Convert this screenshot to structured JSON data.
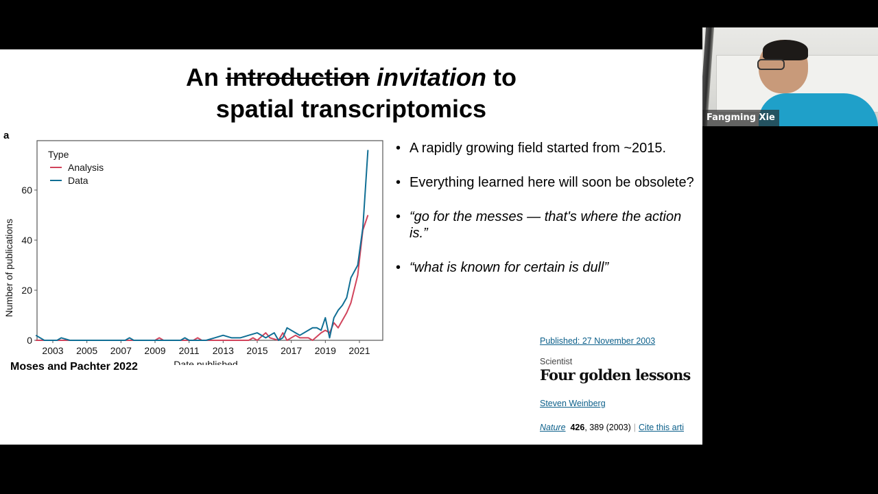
{
  "slide": {
    "title": {
      "word_an": "An",
      "struck_word": "introduction",
      "italic_word": "invitation",
      "word_to": "to",
      "line2": "spatial transcriptomics"
    },
    "panel_label": "a",
    "figure_citation": "Moses and Pachter 2022",
    "bullets": [
      {
        "text": "A rapidly growing field started from ~2015.",
        "style": "normal"
      },
      {
        "text": "Everything learned here will soon be obsolete?",
        "style": "normal"
      },
      {
        "text": "“go for the messes — that's where the action is.”",
        "style": "italic"
      },
      {
        "text": "“what is known for certain is dull”",
        "style": "italic"
      }
    ],
    "bullet_glyph": "•",
    "nature_article": {
      "published": "Published: 27 November 2003",
      "type": "Scientist",
      "title": "Four golden lessons",
      "author": "Steven Weinberg",
      "journal": "Nature",
      "volume": "426",
      "pages_year": ", 389 (2003)",
      "cite_link": "Cite this arti"
    }
  },
  "video": {
    "participant_name": "Fangming Xie"
  },
  "colors": {
    "analysis": "#d1435b",
    "data": "#0f6e94",
    "link": "#0b5f8a"
  },
  "chart_data": {
    "type": "line",
    "title": "",
    "xlabel": "Date published",
    "ylabel": "Number of publications",
    "legend_title": "Type",
    "legend_position": "top-left inside",
    "grid": false,
    "xlim": [
      2002,
      2022.3
    ],
    "ylim": [
      0,
      80
    ],
    "x_ticks": [
      "2003",
      "2005",
      "2007",
      "2009",
      "2011",
      "2013",
      "2015",
      "2017",
      "2019",
      "2021"
    ],
    "y_ticks": [
      "0",
      "20",
      "40",
      "60"
    ],
    "series": [
      {
        "name": "Analysis",
        "color": "#d1435b",
        "x": [
          2002.0,
          2009.0,
          2009.25,
          2009.5,
          2011.25,
          2011.5,
          2011.75,
          2014.5,
          2014.75,
          2015.0,
          2015.5,
          2015.75,
          2016.25,
          2016.5,
          2016.75,
          2017.25,
          2017.5,
          2018.0,
          2018.25,
          2018.75,
          2019.0,
          2019.25,
          2019.5,
          2019.75,
          2020.25,
          2020.5,
          2020.9,
          2021.2,
          2021.5
        ],
        "values": [
          0,
          0,
          1,
          0,
          0,
          1,
          0,
          0,
          1,
          0,
          3,
          1,
          0,
          3,
          0,
          2,
          1,
          1,
          0,
          3,
          4,
          3,
          7,
          5,
          11,
          15,
          26,
          44,
          50
        ]
      },
      {
        "name": "Data",
        "color": "#0f6e94",
        "x": [
          2002.0,
          2002.5,
          2003.25,
          2003.5,
          2004.0,
          2007.25,
          2007.5,
          2007.75,
          2010.5,
          2010.75,
          2011.0,
          2012.0,
          2012.5,
          2013.0,
          2013.5,
          2014.0,
          2014.5,
          2015.0,
          2015.5,
          2015.75,
          2016.0,
          2016.25,
          2016.5,
          2016.75,
          2017.25,
          2017.5,
          2018.0,
          2018.25,
          2018.5,
          2018.75,
          2019.0,
          2019.25,
          2019.5,
          2019.75,
          2020.0,
          2020.25,
          2020.5,
          2020.9,
          2021.2,
          2021.5
        ],
        "values": [
          2,
          0,
          0,
          1,
          0,
          0,
          1,
          0,
          0,
          1,
          0,
          0,
          1,
          2,
          1,
          1,
          2,
          3,
          1,
          2,
          3,
          0,
          1,
          5,
          3,
          2,
          4,
          5,
          5,
          4,
          9,
          1,
          9,
          12,
          14,
          17,
          25,
          30,
          45,
          76
        ]
      }
    ]
  }
}
